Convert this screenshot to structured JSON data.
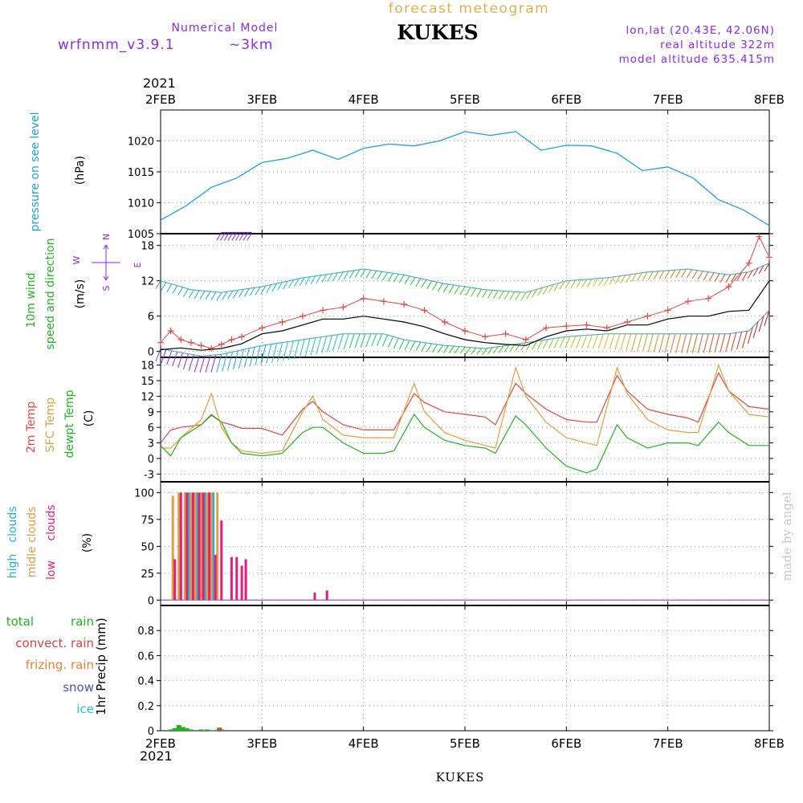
{
  "header": {
    "title": "forecast meteogram",
    "station": "KUKES",
    "model_label": "Numerical Model",
    "model_name": "wrfnmm_v3.9.1",
    "resolution": "~3km",
    "lonlat": "lon,lat (20.43E, 42.06N)",
    "real_altitude": "real altitude 322m",
    "model_altitude": "model altitude 635.415m"
  },
  "footer": {
    "station": "KUKES",
    "year": "2021"
  },
  "watermark": "made by angel",
  "colors": {
    "pressure": "#1e9fe0",
    "temp2m": "#e04848",
    "sfc_temp": "#e0a040",
    "dewpoint": "#22b422",
    "gust": "#e04848",
    "wind": "#000000",
    "high_cloud": "#25aee0",
    "mid_cloud": "#e0a040",
    "low_cloud": "#e0207a",
    "total_rain": "#22b422",
    "convect_rain": "#e04040",
    "frizing_rain": "#f08030",
    "snow": "#5050c0",
    "ice": "#25c0e0",
    "title": "#e0b050",
    "model": "#8a2be2"
  },
  "chart_data": [
    {
      "type": "line",
      "id": "pressure",
      "labels": [
        "pressure on see level",
        "(hPa)"
      ],
      "x_ticks": [
        "2FEB",
        "3FEB",
        "4FEB",
        "5FEB",
        "6FEB",
        "7FEB",
        "8FEB"
      ],
      "x_top_year": "2021",
      "x_range_days": [
        0,
        6
      ],
      "ylim": [
        1005,
        1025
      ],
      "y_ticks": [
        1005,
        1010,
        1015,
        1020
      ],
      "grid": true,
      "series": [
        {
          "x": [
            0,
            0.25,
            0.5,
            0.75,
            1,
            1.25,
            1.5,
            1.75,
            2,
            2.25,
            2.5,
            2.75,
            3,
            3.25,
            3.5,
            3.75,
            4,
            4.25,
            4.5,
            4.75,
            5,
            5.25,
            5.5,
            5.75,
            6
          ],
          "values": [
            1007.2,
            1009.5,
            1012.5,
            1014.0,
            1016.5,
            1017.2,
            1018.5,
            1017.0,
            1018.8,
            1019.5,
            1019.2,
            1020.0,
            1021.5,
            1020.9,
            1021.5,
            1018.5,
            1019.3,
            1019.2,
            1018.0,
            1015.2,
            1015.8,
            1014.0,
            1010.5,
            1008.8,
            1006.3
          ]
        }
      ]
    },
    {
      "type": "line",
      "id": "wind",
      "labels": [
        "10m wind",
        "speed and direction",
        "(m/s)"
      ],
      "compass": [
        "N",
        "W",
        "E",
        "S"
      ],
      "ylim": [
        -1,
        20
      ],
      "y_ticks": [
        0,
        6,
        12,
        18
      ],
      "grid": true,
      "series": [
        {
          "name": "gust",
          "x": [
            0,
            0.1,
            0.2,
            0.3,
            0.4,
            0.5,
            0.6,
            0.7,
            0.8,
            1,
            1.2,
            1.4,
            1.6,
            1.8,
            2,
            2.2,
            2.4,
            2.6,
            2.8,
            3,
            3.2,
            3.4,
            3.6,
            3.8,
            4,
            4.2,
            4.4,
            4.6,
            4.8,
            5,
            5.2,
            5.4,
            5.6,
            5.8,
            5.9,
            6
          ],
          "values": [
            1.5,
            3.5,
            2,
            1.5,
            1,
            0.5,
            1.2,
            2,
            2.5,
            4,
            5,
            6,
            7,
            7.5,
            9,
            8.5,
            8,
            7,
            5,
            3.5,
            2.5,
            3,
            2,
            4,
            4.3,
            4.5,
            4,
            5,
            6,
            7,
            8.5,
            9,
            11,
            15,
            19.5,
            16
          ]
        },
        {
          "name": "speed",
          "x": [
            0,
            0.2,
            0.4,
            0.6,
            0.8,
            1,
            1.2,
            1.4,
            1.6,
            1.8,
            2,
            2.2,
            2.4,
            2.6,
            2.8,
            3,
            3.2,
            3.4,
            3.6,
            3.8,
            4,
            4.2,
            4.4,
            4.6,
            4.8,
            5,
            5.2,
            5.4,
            5.6,
            5.8,
            6
          ],
          "values": [
            0.3,
            0.6,
            0.2,
            0.5,
            1.3,
            3,
            3.5,
            4.5,
            5.5,
            5.5,
            6,
            5.5,
            5,
            4.2,
            3,
            2,
            1.5,
            1.2,
            1,
            2.5,
            3.5,
            3.8,
            3.5,
            4.5,
            4.5,
            5.5,
            6,
            6,
            6.8,
            7,
            12
          ]
        }
      ],
      "barb_arcs": [
        {
          "x": [
            0,
            0.3,
            0.6,
            1,
            1.4,
            1.8,
            2,
            2.4,
            2.8,
            3.2,
            3.6,
            4,
            4.4,
            4.8,
            5.2,
            5.6,
            5.8,
            6
          ],
          "values": [
            12,
            10.5,
            10,
            11,
            12.5,
            13.5,
            14,
            13,
            11.5,
            10.5,
            10,
            12,
            12.5,
            13.5,
            14,
            13,
            13.5,
            15
          ]
        },
        {
          "x": [
            0,
            0.2,
            0.4,
            0.6,
            1,
            1.4,
            1.8,
            2.2,
            2.4,
            2.8,
            3.2,
            3.6,
            4,
            4.4,
            4.8,
            5.2,
            5.6,
            5.8,
            6
          ],
          "values": [
            0.5,
            -0.2,
            -0.8,
            -0.5,
            1,
            2,
            3,
            3,
            2,
            1,
            0.5,
            1.5,
            2.5,
            3,
            3,
            3,
            3,
            3.5,
            7
          ]
        },
        {
          "x": [
            0.6,
            0.9
          ],
          "values": [
            20.2,
            20.2
          ]
        }
      ]
    },
    {
      "type": "line",
      "id": "temperature",
      "labels": [
        "2m Temp",
        "SFC Temp",
        "dewpt Temp",
        "(C)"
      ],
      "ylim": [
        -4.5,
        19.5
      ],
      "y_ticks": [
        -3,
        0,
        3,
        6,
        9,
        12,
        15,
        18
      ],
      "grid": true,
      "series": [
        {
          "name": "2m Temp",
          "x": [
            0,
            0.1,
            0.2,
            0.4,
            0.5,
            0.6,
            0.7,
            0.8,
            1,
            1.2,
            1.4,
            1.5,
            1.6,
            1.8,
            2,
            2.2,
            2.3,
            2.5,
            2.6,
            2.8,
            3,
            3.2,
            3.3,
            3.5,
            3.6,
            3.8,
            4,
            4.2,
            4.3,
            4.5,
            4.6,
            4.8,
            5,
            5.2,
            5.3,
            5.5,
            5.6,
            5.8,
            6
          ],
          "values": [
            3,
            5.5,
            6,
            6.5,
            8.3,
            7,
            6.5,
            5.8,
            5.8,
            4.5,
            9.5,
            11,
            9,
            6.5,
            5.5,
            5.5,
            5.5,
            12.5,
            10.8,
            9,
            8.5,
            8,
            6.5,
            14.5,
            12.5,
            9.5,
            7.5,
            7,
            7,
            16,
            13,
            9.5,
            8.5,
            7.8,
            7,
            16.5,
            13,
            10,
            9.5
          ]
        },
        {
          "name": "SFC Temp",
          "x": [
            0,
            0.1,
            0.2,
            0.4,
            0.5,
            0.6,
            0.7,
            0.8,
            1,
            1.2,
            1.4,
            1.5,
            1.6,
            1.8,
            2,
            2.2,
            2.3,
            2.5,
            2.6,
            2.8,
            3,
            3.2,
            3.3,
            3.5,
            3.6,
            3.8,
            4,
            4.2,
            4.3,
            4.5,
            4.6,
            4.8,
            5,
            5.2,
            5.3,
            5.5,
            5.6,
            5.8,
            6
          ],
          "values": [
            2,
            2,
            4,
            7.5,
            12.5,
            6,
            3,
            1.5,
            1,
            1.5,
            9,
            12,
            7.5,
            4.5,
            4,
            4,
            4,
            14.5,
            9,
            5,
            3.5,
            2.5,
            2,
            17.5,
            12,
            7,
            4,
            3,
            2.5,
            17.5,
            12.5,
            7.5,
            5.5,
            5,
            5,
            18,
            13,
            8.5,
            8
          ]
        },
        {
          "name": "dewpt Temp",
          "x": [
            0,
            0.1,
            0.2,
            0.4,
            0.5,
            0.6,
            0.7,
            0.8,
            1,
            1.2,
            1.4,
            1.5,
            1.6,
            1.8,
            2,
            2.2,
            2.3,
            2.5,
            2.6,
            2.8,
            3,
            3.2,
            3.3,
            3.5,
            3.6,
            3.8,
            4,
            4.2,
            4.3,
            4.5,
            4.6,
            4.8,
            5,
            5.2,
            5.3,
            5.5,
            5.6,
            5.8,
            6
          ],
          "values": [
            2.5,
            0.5,
            4,
            6.5,
            8.5,
            7,
            3,
            1,
            0.5,
            1,
            5,
            6,
            6,
            3,
            1,
            1,
            1.5,
            8.5,
            6,
            3.5,
            2.5,
            2,
            1,
            8.2,
            6.5,
            2,
            -1.5,
            -2.8,
            -2,
            6.5,
            4,
            2,
            3,
            3,
            2.5,
            7,
            5,
            2.5,
            2.5
          ]
        }
      ]
    },
    {
      "type": "bar",
      "id": "clouds",
      "labels": [
        "high",
        "clouds",
        "midle clouds",
        "low",
        "clouds",
        "(%)"
      ],
      "ylim": [
        -5,
        110
      ],
      "y_ticks": [
        0,
        25,
        50,
        75,
        100
      ],
      "grid": true,
      "series": [
        {
          "name": "high clouds",
          "x": [
            0.2,
            0.28,
            0.36,
            0.44,
            0.52
          ],
          "values": [
            65,
            100,
            100,
            100,
            100
          ]
        },
        {
          "name": "midle clouds",
          "x": [
            0.12,
            0.18,
            0.24,
            0.3,
            0.34,
            0.4,
            0.46,
            0.5,
            0.56
          ],
          "values": [
            97,
            100,
            100,
            100,
            100,
            100,
            100,
            100,
            100
          ]
        },
        {
          "name": "low clouds",
          "x": [
            0.14,
            0.2,
            0.26,
            0.32,
            0.38,
            0.42,
            0.48,
            0.54,
            0.6,
            0.7,
            0.75,
            0.8,
            0.84,
            1.52,
            1.64
          ],
          "values": [
            38,
            100,
            100,
            100,
            100,
            100,
            100,
            42,
            74,
            40,
            40,
            32,
            38,
            7,
            9
          ]
        }
      ]
    },
    {
      "type": "bar",
      "id": "precip",
      "labels": [
        "total",
        "rain",
        "convect. rain",
        "frizing. rain",
        "snow",
        "ice",
        "1hr Precip (mm)"
      ],
      "ylim": [
        0,
        1.0
      ],
      "y_ticks": [
        0,
        0.2,
        0.4,
        0.6,
        0.8
      ],
      "grid": true,
      "series": [
        {
          "name": "total rain",
          "x": [
            0.1,
            0.14,
            0.18,
            0.22,
            0.26,
            0.3,
            0.4,
            0.46,
            0.5,
            0.58,
            0.6
          ],
          "values": [
            0.01,
            0.02,
            0.045,
            0.03,
            0.02,
            0.01,
            0.01,
            0.01,
            0.005,
            0.025,
            0.01
          ]
        },
        {
          "name": "convect. rain",
          "x": [
            0.58
          ],
          "values": [
            0.02
          ]
        }
      ]
    }
  ]
}
